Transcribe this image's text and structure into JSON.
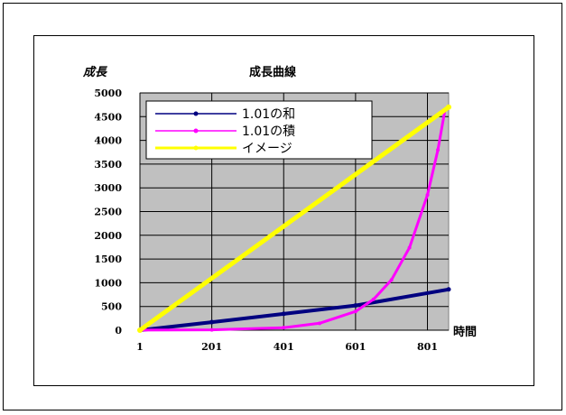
{
  "chart_data": {
    "type": "line",
    "title": "成長曲線",
    "ylabel": "成長",
    "xlabel": "時間",
    "x_ticks": [
      "1",
      "201",
      "401",
      "601",
      "801"
    ],
    "y_ticks": [
      "0",
      "500",
      "1000",
      "1500",
      "2000",
      "2500",
      "3000",
      "3500",
      "4000",
      "4500",
      "5000"
    ],
    "xlim": [
      1,
      860
    ],
    "ylim": [
      0,
      5000
    ],
    "grid": true,
    "legend_position": "top-left",
    "series": [
      {
        "name": "1.01の和",
        "color": "#000080",
        "values": [
          [
            1,
            0
          ],
          [
            201,
            170
          ],
          [
            401,
            345
          ],
          [
            601,
            520
          ],
          [
            860,
            860
          ]
        ]
      },
      {
        "name": "1.01の積",
        "color": "#ff00ff",
        "values": [
          [
            1,
            1
          ],
          [
            201,
            7
          ],
          [
            401,
            54
          ],
          [
            501,
            146
          ],
          [
            601,
            395
          ],
          [
            651,
            650
          ],
          [
            701,
            1060
          ],
          [
            751,
            1740
          ],
          [
            801,
            2850
          ],
          [
            830,
            3800
          ],
          [
            850,
            4650
          ]
        ]
      },
      {
        "name": "イメージ",
        "color": "#ffff00",
        "values": [
          [
            1,
            0
          ],
          [
            860,
            4700
          ]
        ]
      }
    ]
  }
}
